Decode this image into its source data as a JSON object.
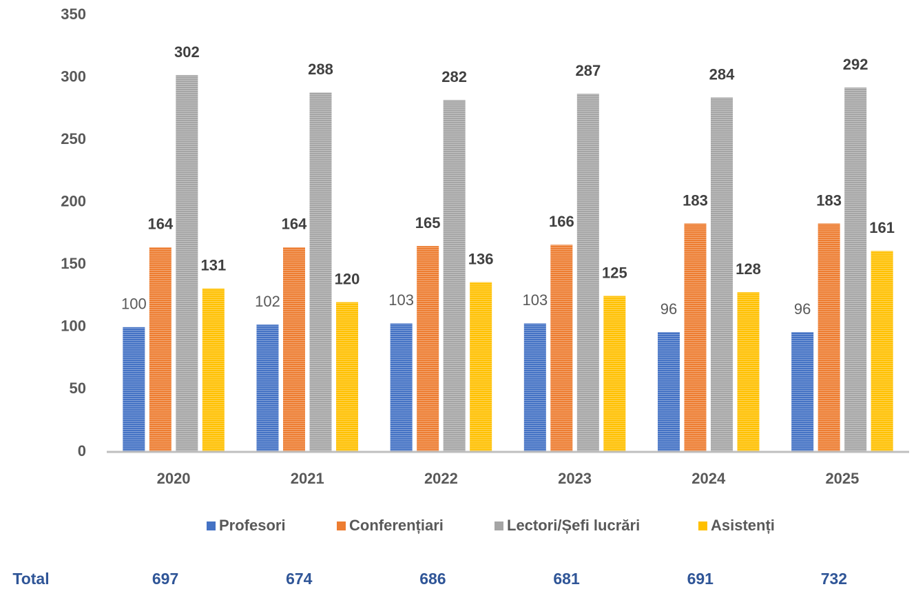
{
  "chart_data": {
    "type": "bar",
    "categories": [
      "2020",
      "2021",
      "2022",
      "2023",
      "2024",
      "2025"
    ],
    "series": [
      {
        "name": "Profesori",
        "color": "#4472c4",
        "values": [
          100,
          102,
          103,
          103,
          96,
          96
        ]
      },
      {
        "name": "Conferențiari",
        "color": "#ed7d31",
        "values": [
          164,
          164,
          165,
          166,
          183,
          183
        ]
      },
      {
        "name": "Lectori/Șefi lucrări",
        "color": "#a5a5a5",
        "values": [
          302,
          288,
          282,
          287,
          284,
          292
        ]
      },
      {
        "name": "Asistenți",
        "color": "#ffc000",
        "values": [
          131,
          120,
          136,
          125,
          128,
          161
        ]
      }
    ],
    "ylim": [
      0,
      350
    ],
    "yticks": [
      0,
      50,
      100,
      150,
      200,
      250,
      300,
      350
    ],
    "legend": "bottom",
    "totals_label": "Total",
    "totals": [
      697,
      674,
      686,
      681,
      691,
      732
    ]
  }
}
